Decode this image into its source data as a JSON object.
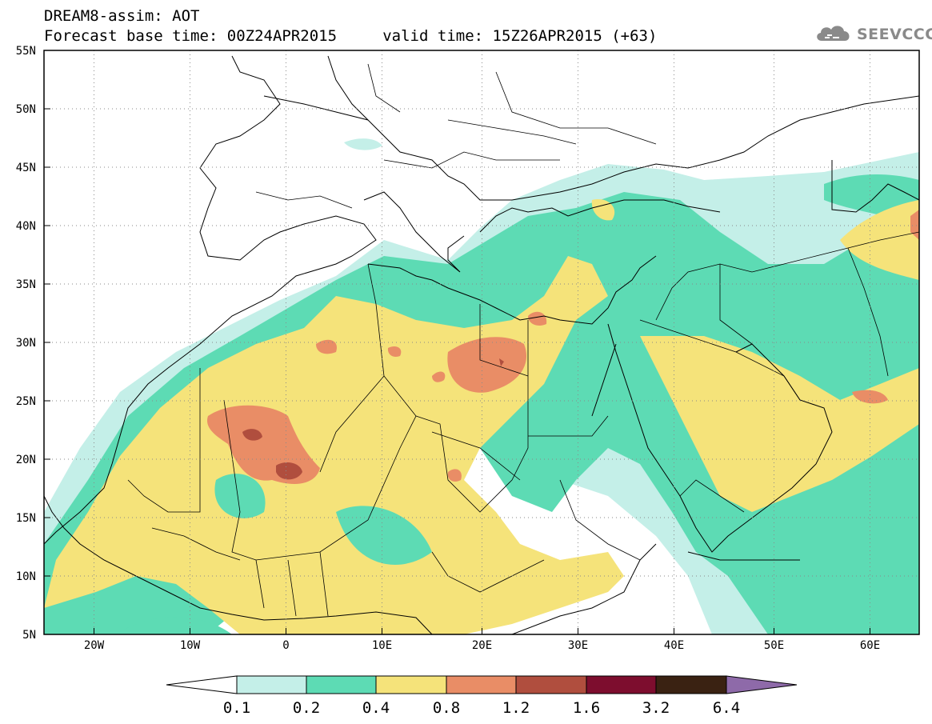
{
  "header": {
    "title_line1": "DREAM8-assim: AOT",
    "title_line2": "Forecast base time: 00Z24APR2015     valid time: 15Z26APR2015 (+63)"
  },
  "logo": {
    "text": "SEEVCCC",
    "icon": "cloud-icon"
  },
  "map": {
    "lon_labels": [
      "20W",
      "10W",
      "0",
      "10E",
      "20E",
      "30E",
      "40E",
      "50E",
      "60E"
    ],
    "lat_labels": [
      "55N",
      "50N",
      "45N",
      "40N",
      "35N",
      "30N",
      "25N",
      "20N",
      "15N",
      "10N",
      "5N"
    ]
  },
  "colorbar": {
    "labels": [
      "0.1",
      "0.2",
      "0.4",
      "0.8",
      "1.2",
      "1.6",
      "3.2",
      "6.4"
    ],
    "colors": [
      "#ffffff",
      "#c4efe8",
      "#5ddbb4",
      "#f5e37a",
      "#e98d66",
      "#b04e3e",
      "#7d0d2e",
      "#3a2212",
      "#8e6aa9"
    ]
  }
}
